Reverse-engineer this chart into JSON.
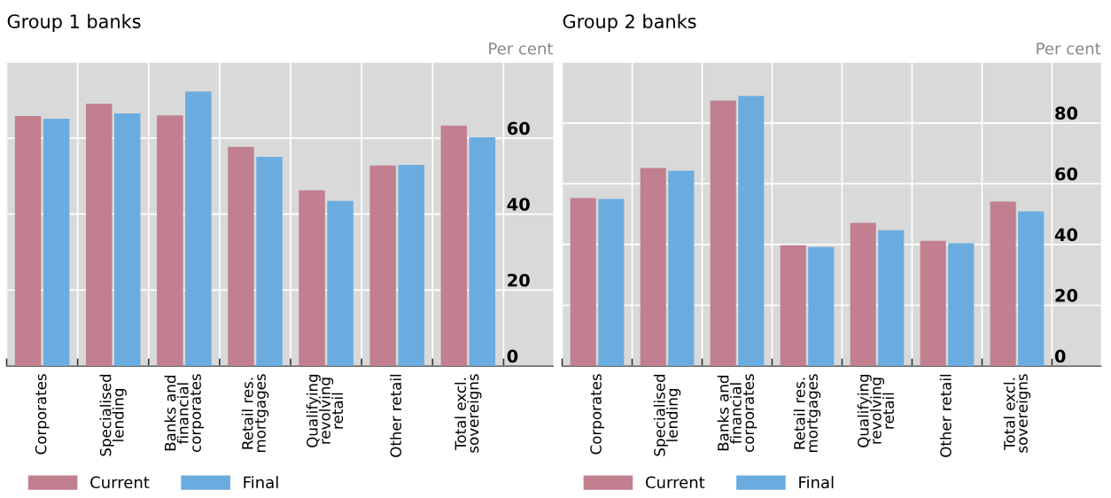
{
  "chart_data": [
    {
      "type": "bar",
      "title": "Group 1 banks",
      "ylabel": "Per cent",
      "categories": [
        "Corporates",
        "Specialised\nlending",
        "Banks and\nfinancial\ncorporates",
        "Retail res.\nmortgages",
        "Qualifying\nrevolving\nretail",
        "Other retail",
        "Total excl.\nsovereigns"
      ],
      "series": [
        {
          "name": "Current",
          "color": "#c17f8f",
          "values": [
            65.8,
            69.1,
            66.0,
            57.7,
            46.3,
            52.8,
            63.3
          ]
        },
        {
          "name": "Final",
          "color": "#6aace0",
          "values": [
            65.1,
            66.5,
            72.3,
            55.1,
            43.5,
            53.0,
            60.2
          ]
        }
      ],
      "ylim": [
        0,
        80
      ],
      "yticks": [
        0,
        20,
        40,
        60,
        {
          "value": 80,
          "label": null
        }
      ],
      "grid": true,
      "legend": "bottom left"
    },
    {
      "type": "bar",
      "title": "Group 2 banks",
      "ylabel": "Per cent",
      "categories": [
        "Corporates",
        "Specialised\nlending",
        "Banks and\nfinancial\ncorporates",
        "Retail res.\nmortgages",
        "Qualifying\nrevolving\nretail",
        "Other retail",
        "Total excl.\nsovereigns"
      ],
      "series": [
        {
          "name": "Current",
          "color": "#c17f8f",
          "values": [
            55.3,
            65.2,
            87.4,
            39.8,
            47.1,
            41.2,
            54.1
          ]
        },
        {
          "name": "Final",
          "color": "#6aace0",
          "values": [
            55.0,
            64.3,
            88.9,
            39.2,
            44.7,
            40.4,
            50.9
          ]
        }
      ],
      "ylim": [
        0,
        100
      ],
      "yticks": [
        0,
        20,
        40,
        60,
        80,
        {
          "value": 100,
          "label": null
        }
      ],
      "grid": true,
      "legend": "bottom left"
    }
  ]
}
